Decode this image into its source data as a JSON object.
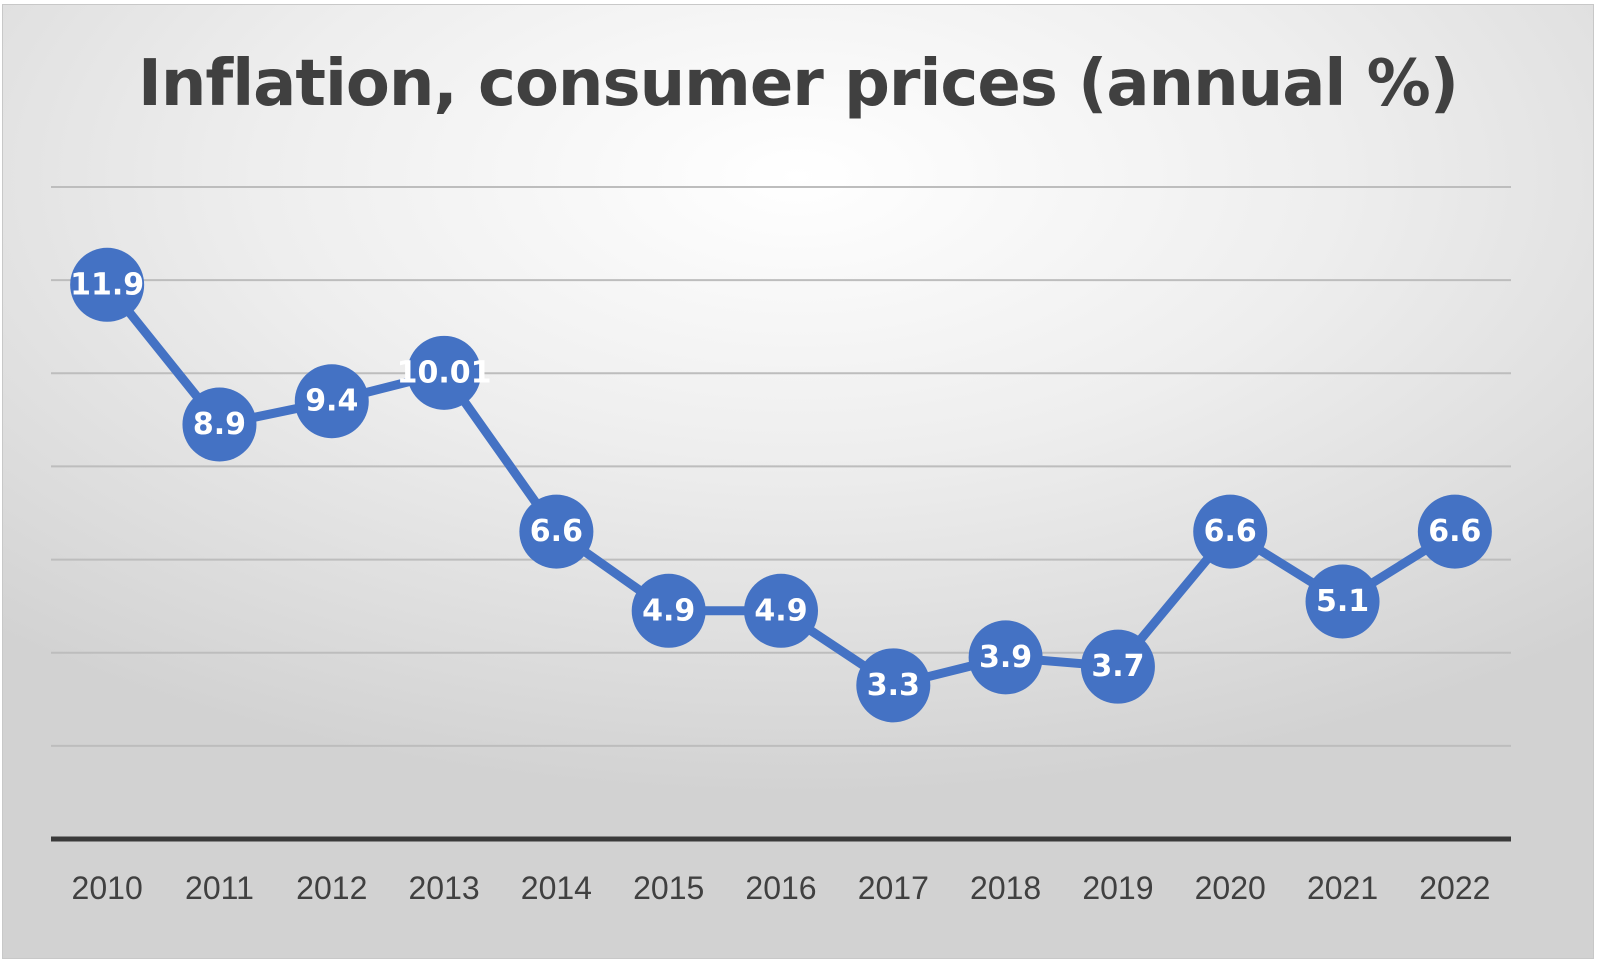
{
  "chart_data": {
    "type": "line",
    "title": "Inflation, consumer prices (annual %)",
    "xlabel": "",
    "ylabel": "",
    "categories": [
      "2010",
      "2011",
      "2012",
      "2013",
      "2014",
      "2015",
      "2016",
      "2017",
      "2018",
      "2019",
      "2020",
      "2021",
      "2022"
    ],
    "series": [
      {
        "name": "Inflation, consumer prices (annual %)",
        "values": [
          11.9,
          8.9,
          9.4,
          10.01,
          6.6,
          4.9,
          4.9,
          3.3,
          3.9,
          3.7,
          6.6,
          5.1,
          6.6
        ],
        "labels": [
          "11.9",
          "8.9",
          "9.4",
          "10.01",
          "6.6",
          "4.9",
          "4.9",
          "3.3",
          "3.9",
          "3.7",
          "6.6",
          "5.1",
          "6.6"
        ]
      }
    ],
    "ylim": [
      0,
      14
    ],
    "y_gridlines": [
      2,
      4,
      6,
      8,
      10,
      12,
      14
    ],
    "grid": true,
    "legend": "none",
    "colors": {
      "series": "#4472c4",
      "label_text": "#ffffff",
      "axis": "#3a3a3a",
      "grid": "#bdbdbd",
      "title": "#404040"
    }
  }
}
